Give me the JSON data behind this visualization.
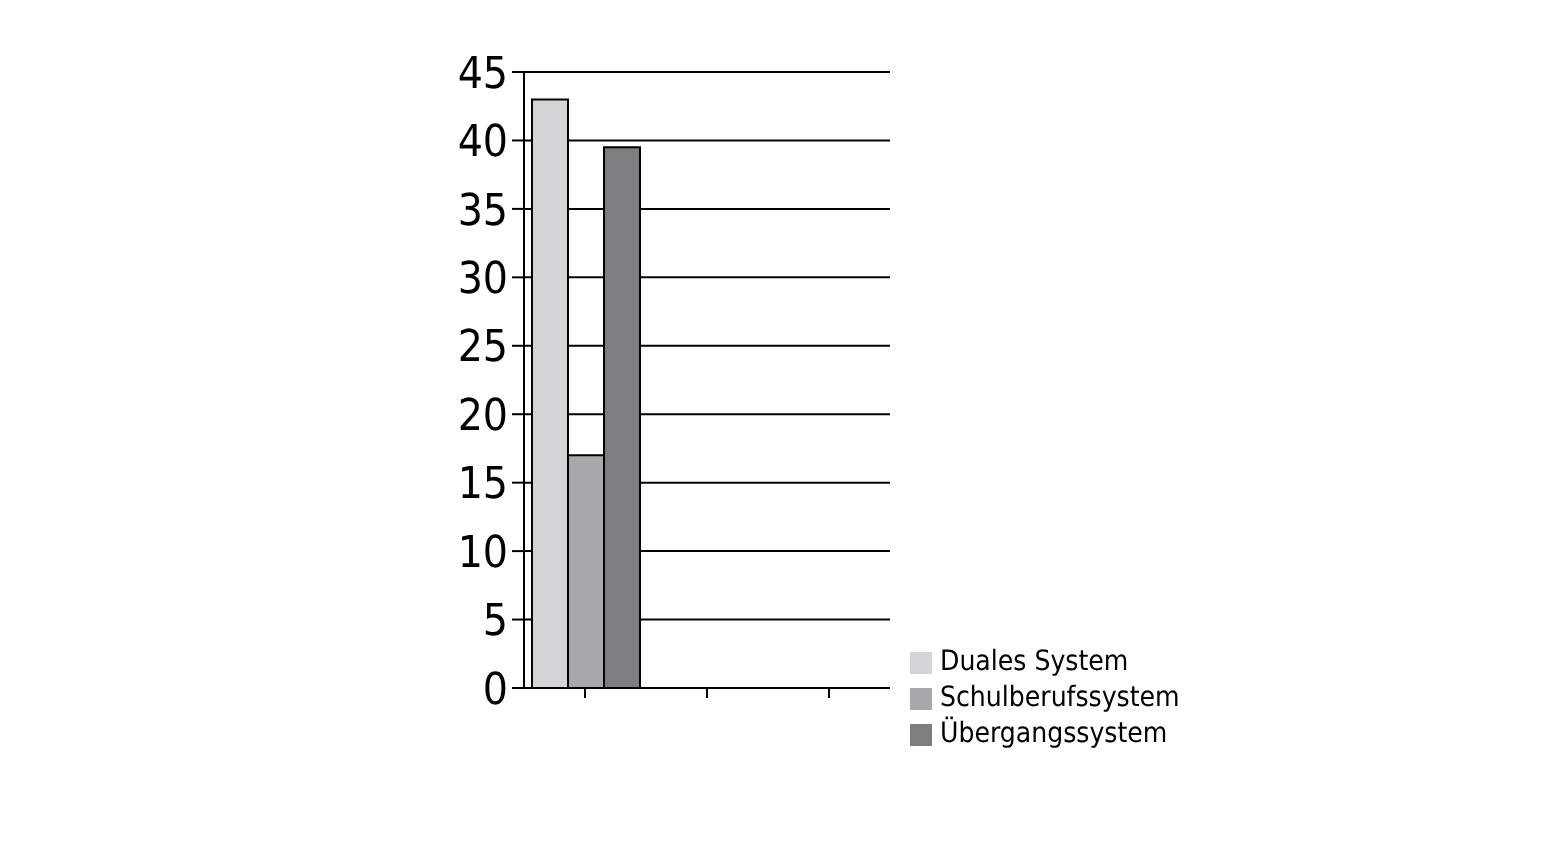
{
  "chart_data": {
    "type": "bar",
    "categories": [
      null,
      null,
      null
    ],
    "series": [
      {
        "name": "Duales System",
        "color": "#d4d4d6",
        "values": [
          43,
          null,
          null
        ]
      },
      {
        "name": "Schulberufssystem",
        "color": "#a9a9ab",
        "values": [
          17,
          null,
          null
        ]
      },
      {
        "name": "Übergangssystem",
        "color": "#7e7e80",
        "values": [
          39.5,
          null,
          null
        ]
      }
    ],
    "ylim": [
      0,
      45
    ],
    "yticks": [
      0,
      5,
      10,
      15,
      20,
      25,
      30,
      35,
      40,
      45
    ],
    "grid": "y",
    "legend": "right"
  }
}
